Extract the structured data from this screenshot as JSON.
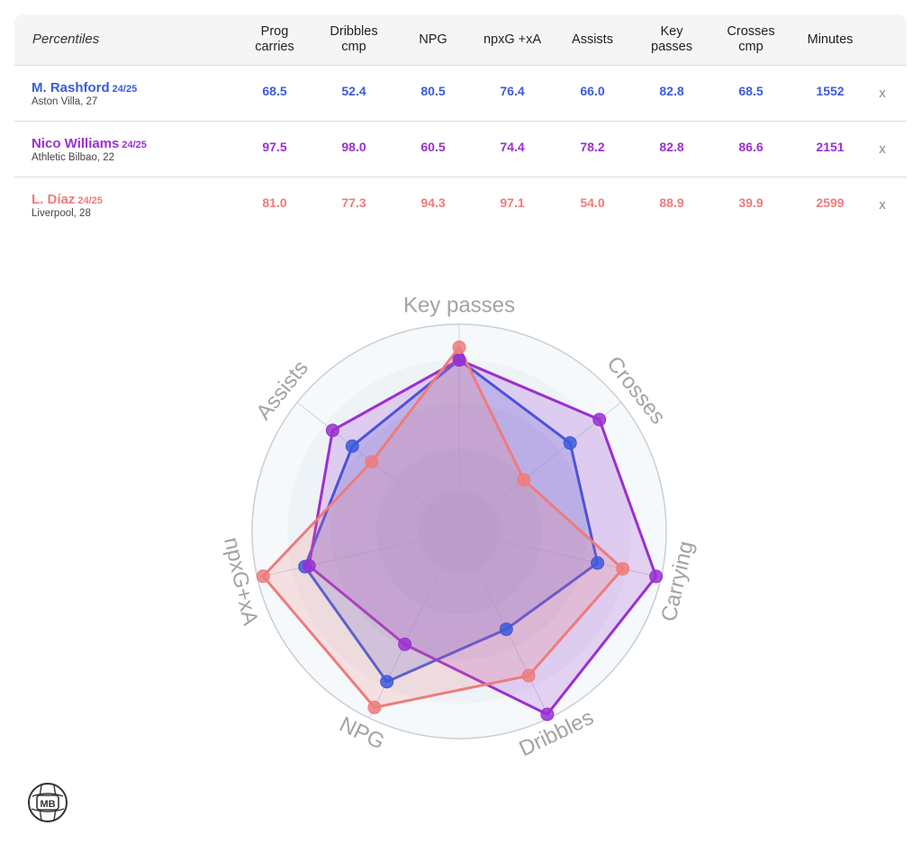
{
  "table": {
    "header_label": "Percentiles",
    "columns": [
      "Prog\ncarries",
      "Dribbles\ncmp",
      "NPG",
      "npxG +xA",
      "Assists",
      "Key\npasses",
      "Crosses\ncmp",
      "Minutes"
    ],
    "remove_label": "x",
    "players": [
      {
        "name": "M. Rashford",
        "season": "24/25",
        "team": "Aston Villa, 27",
        "color": "#3b5bdb",
        "values": [
          "68.5",
          "52.4",
          "80.5",
          "76.4",
          "66.0",
          "82.8",
          "68.5",
          "1552"
        ]
      },
      {
        "name": "Nico Williams",
        "season": "24/25",
        "team": "Athletic Bilbao, 22",
        "color": "#9b30d0",
        "values": [
          "97.5",
          "98.0",
          "60.5",
          "74.4",
          "78.2",
          "82.8",
          "86.6",
          "2151"
        ]
      },
      {
        "name": "L. Díaz",
        "season": "24/25",
        "team": "Liverpool, 28",
        "color": "#ef7b7b",
        "values": [
          "81.0",
          "77.3",
          "94.3",
          "97.1",
          "54.0",
          "88.9",
          "39.9",
          "2599"
        ]
      }
    ]
  },
  "chart_data": {
    "type": "radar",
    "axes": [
      "Key passes",
      "Crosses",
      "Carrying",
      "Dribbles",
      "NPG",
      "npxG+xA",
      "Assists"
    ],
    "range": [
      0,
      100
    ],
    "series": [
      {
        "name": "M. Rashford",
        "color": "#3b5bdb",
        "values": [
          82.8,
          68.5,
          68.5,
          52.4,
          80.5,
          76.4,
          66.0
        ]
      },
      {
        "name": "Nico Williams",
        "color": "#9b30d0",
        "values": [
          82.8,
          86.6,
          97.5,
          98.0,
          60.5,
          74.4,
          78.2
        ]
      },
      {
        "name": "L. Díaz",
        "color": "#ef7b7b",
        "values": [
          88.9,
          39.9,
          81.0,
          77.3,
          94.3,
          97.1,
          54.0
        ]
      }
    ]
  },
  "logo": {
    "text": "MB"
  }
}
